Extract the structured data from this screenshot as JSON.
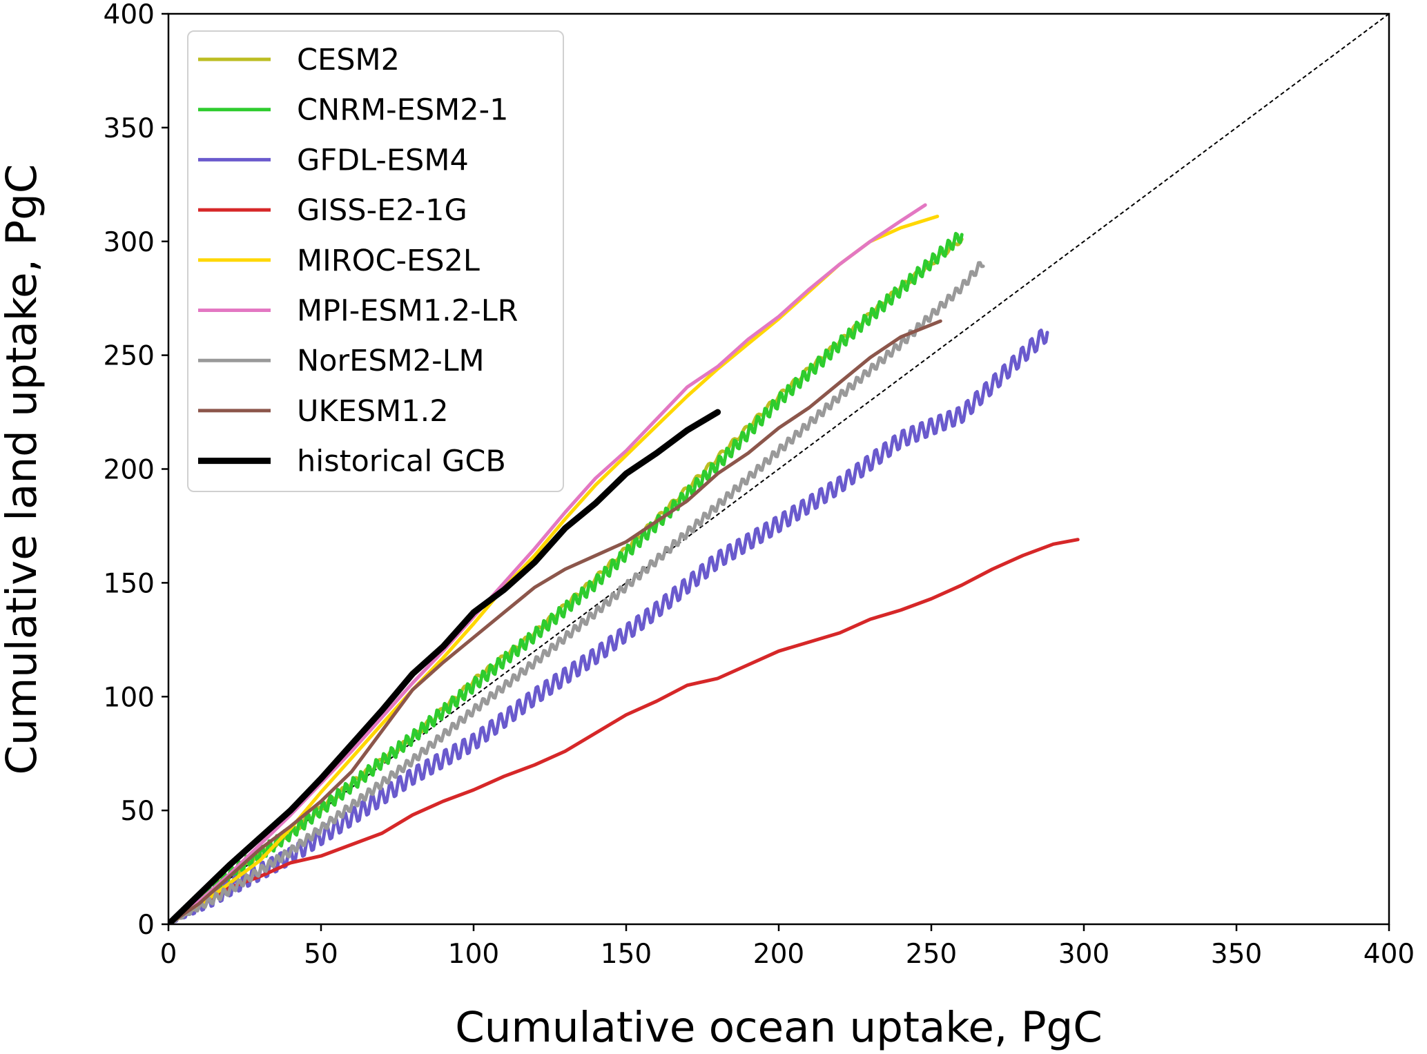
{
  "chart_data": {
    "type": "line",
    "xlabel": "Cumulative ocean uptake, PgC",
    "ylabel": "Cumulative land uptake, PgC",
    "xlim": [
      0,
      400
    ],
    "ylim": [
      0,
      400
    ],
    "xticks": [
      "0",
      "50",
      "100",
      "150",
      "200",
      "250",
      "300",
      "350",
      "400"
    ],
    "yticks": [
      "0",
      "50",
      "100",
      "150",
      "200",
      "250",
      "300",
      "350",
      "400"
    ],
    "grid": false,
    "legend_position": "top-left",
    "reference_line": {
      "x": [
        0,
        400
      ],
      "y": [
        0,
        400
      ],
      "style": "dashed",
      "color": "#000000"
    },
    "series": [
      {
        "name": "CESM2",
        "color": "#bcbd22",
        "width": 5,
        "wiggle": 1.2,
        "period": 4,
        "x": [
          0,
          20,
          40,
          60,
          80,
          100,
          120,
          140,
          160,
          180,
          200,
          220,
          240,
          260
        ],
        "y": [
          0,
          21,
          40,
          62,
          82,
          107,
          128,
          152,
          178,
          205,
          232,
          256,
          280,
          301
        ]
      },
      {
        "name": "CNRM-ESM2-1",
        "color": "#2ecc2e",
        "width": 5,
        "wiggle": 3.0,
        "period": 2.5,
        "x": [
          0,
          20,
          40,
          60,
          80,
          100,
          120,
          140,
          160,
          180,
          200,
          220,
          240,
          260
        ],
        "y": [
          0,
          22,
          40,
          61,
          82,
          105,
          127,
          150,
          176,
          202,
          230,
          255,
          279,
          303
        ]
      },
      {
        "name": "GFDL-ESM4",
        "color": "#6a5acd",
        "width": 5,
        "wiggle": 4.0,
        "period": 3,
        "x": [
          0,
          20,
          40,
          60,
          80,
          100,
          120,
          140,
          160,
          180,
          200,
          220,
          240,
          260,
          280,
          288
        ],
        "y": [
          0,
          16,
          30,
          47,
          65,
          80,
          100,
          118,
          138,
          160,
          176,
          193,
          213,
          224,
          250,
          260
        ]
      },
      {
        "name": "GISS-E2-1G",
        "color": "#d62728",
        "width": 5,
        "wiggle": 0,
        "period": 4,
        "x": [
          0,
          10,
          20,
          30,
          40,
          50,
          60,
          70,
          80,
          90,
          100,
          110,
          120,
          130,
          140,
          150,
          160,
          170,
          180,
          190,
          200,
          210,
          220,
          230,
          240,
          250,
          260,
          270,
          280,
          290,
          298
        ],
        "y": [
          0,
          8,
          16,
          21,
          27,
          30,
          35,
          40,
          48,
          54,
          59,
          65,
          70,
          76,
          84,
          92,
          98,
          105,
          108,
          114,
          120,
          124,
          128,
          134,
          138,
          143,
          149,
          156,
          162,
          167,
          169
        ]
      },
      {
        "name": "MIROC-ES2L",
        "color": "#ffd700",
        "width": 5,
        "wiggle": 0,
        "period": 4,
        "x": [
          0,
          10,
          20,
          30,
          40,
          50,
          60,
          70,
          80,
          90,
          100,
          110,
          120,
          130,
          140,
          150,
          160,
          170,
          180,
          190,
          200,
          210,
          220,
          230,
          240,
          252
        ],
        "y": [
          0,
          8,
          18,
          28,
          42,
          58,
          73,
          88,
          103,
          117,
          132,
          148,
          162,
          178,
          193,
          206,
          219,
          232,
          244,
          255,
          266,
          278,
          290,
          300,
          306,
          311
        ]
      },
      {
        "name": "MPI-ESM1.2-LR",
        "color": "#e377c2",
        "width": 5,
        "wiggle": 0,
        "period": 4,
        "x": [
          0,
          10,
          20,
          30,
          40,
          50,
          60,
          70,
          80,
          90,
          100,
          110,
          120,
          130,
          140,
          150,
          160,
          170,
          180,
          190,
          200,
          210,
          220,
          230,
          240,
          248
        ],
        "y": [
          0,
          10,
          22,
          35,
          48,
          62,
          76,
          91,
          106,
          120,
          135,
          150,
          165,
          181,
          196,
          208,
          222,
          236,
          245,
          257,
          267,
          279,
          290,
          300,
          309,
          316
        ]
      },
      {
        "name": "NorESM2-LM",
        "color": "#999999",
        "width": 5,
        "wiggle": 2.0,
        "period": 2.5,
        "x": [
          0,
          20,
          40,
          60,
          80,
          100,
          120,
          140,
          160,
          180,
          200,
          220,
          240,
          260,
          267
        ],
        "y": [
          0,
          15,
          32,
          52,
          72,
          94,
          115,
          137,
          160,
          184,
          208,
          232,
          255,
          280,
          291
        ]
      },
      {
        "name": "UKESM1.2",
        "color": "#8c564b",
        "width": 5,
        "wiggle": 0,
        "period": 4,
        "x": [
          0,
          10,
          20,
          30,
          40,
          50,
          60,
          70,
          80,
          90,
          100,
          110,
          120,
          130,
          140,
          150,
          160,
          170,
          180,
          190,
          200,
          210,
          220,
          230,
          240,
          253
        ],
        "y": [
          0,
          9,
          21,
          33,
          43,
          54,
          67,
          85,
          103,
          115,
          126,
          137,
          148,
          156,
          162,
          168,
          177,
          186,
          198,
          207,
          218,
          227,
          238,
          249,
          258,
          265
        ]
      },
      {
        "name": "historical GCB",
        "color": "#000000",
        "width": 9,
        "wiggle": 0,
        "period": 4,
        "x": [
          0,
          10,
          20,
          30,
          40,
          50,
          60,
          70,
          80,
          90,
          100,
          110,
          120,
          130,
          140,
          150,
          160,
          170,
          180
        ],
        "y": [
          0,
          13,
          26,
          38,
          50,
          64,
          79,
          94,
          110,
          122,
          137,
          147,
          159,
          174,
          185,
          198,
          207,
          217,
          225
        ]
      }
    ]
  }
}
